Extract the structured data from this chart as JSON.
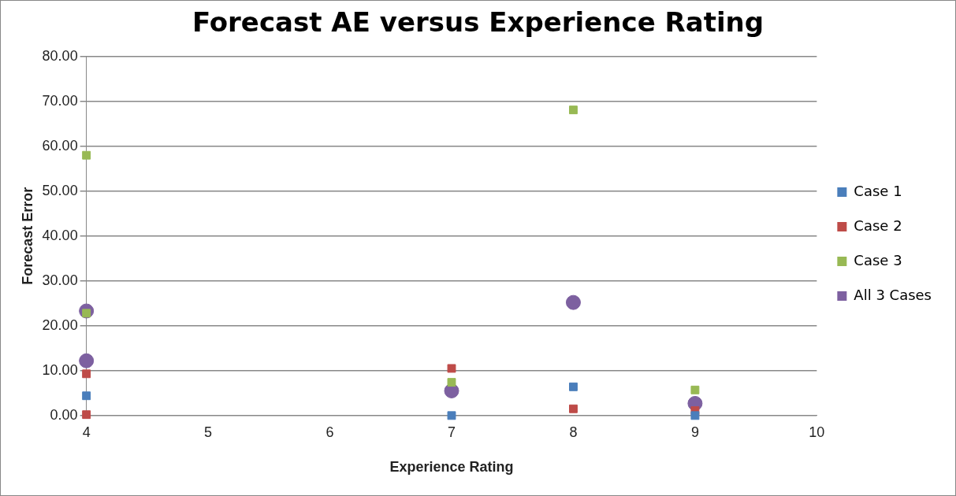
{
  "chart_data": {
    "type": "scatter",
    "title": "Forecast AE versus Experience Rating",
    "xlabel": "Experience Rating",
    "ylabel": "Forecast Error",
    "xlim": [
      4,
      10
    ],
    "xticks": [
      4,
      5,
      6,
      7,
      8,
      9,
      10
    ],
    "ylim": [
      0,
      80
    ],
    "yticks": [
      {
        "value": 0,
        "label": "0.00"
      },
      {
        "value": 10,
        "label": "10.00"
      },
      {
        "value": 20,
        "label": "20.00"
      },
      {
        "value": 30,
        "label": "30.00"
      },
      {
        "value": 40,
        "label": "40.00"
      },
      {
        "value": 50,
        "label": "50.00"
      },
      {
        "value": 60,
        "label": "60.00"
      },
      {
        "value": 70,
        "label": "70.00"
      },
      {
        "value": 80,
        "label": "80.00"
      }
    ],
    "grid": "y",
    "legend": "right",
    "series": [
      {
        "name": "Case 1",
        "color": "#4a7ebb",
        "marker": "square",
        "x": [
          4,
          7,
          8,
          9
        ],
        "values": [
          4.4,
          0,
          6.4,
          0
        ]
      },
      {
        "name": "Case 2",
        "color": "#be4b48",
        "marker": "square",
        "x": [
          4,
          4,
          7,
          8,
          9
        ],
        "values": [
          9.3,
          0.2,
          10.5,
          1.5,
          1.1
        ]
      },
      {
        "name": "Case 3",
        "color": "#98b954",
        "marker": "square",
        "x": [
          4,
          4,
          7,
          8,
          9
        ],
        "values": [
          58,
          22.8,
          7.4,
          68.1,
          5.7
        ]
      },
      {
        "name": "All 3 Cases",
        "color": "#7d60a0",
        "marker": "circle",
        "x": [
          4,
          4,
          7,
          8,
          9
        ],
        "values": [
          23.3,
          12.2,
          5.5,
          25.2,
          2.7
        ]
      }
    ]
  }
}
